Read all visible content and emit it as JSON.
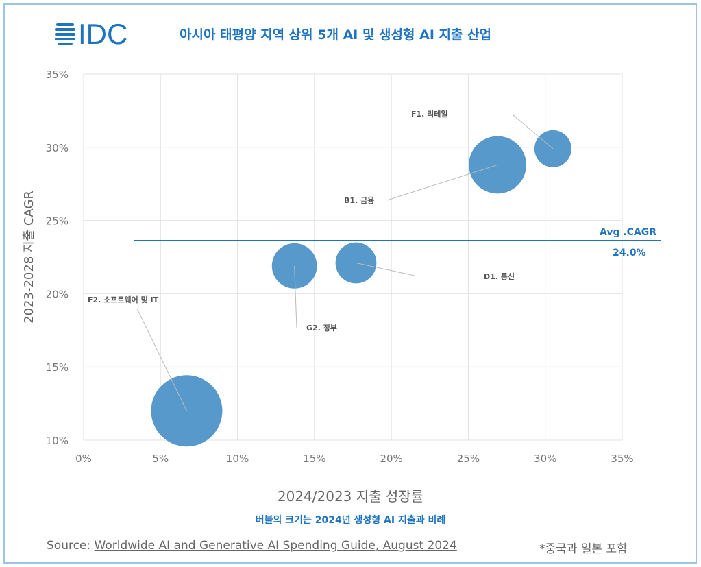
{
  "header": {
    "logo_text": "IDC",
    "title": "아시아 태평양 지역 상위 5개 AI 및 생성형 AI 지출 산업"
  },
  "chart_data": {
    "type": "bubble",
    "title": "아시아 태평양 지역 상위 5개 AI 및 생성형 AI 지출 산업",
    "xlabel": "2024/2023 지출 성장률",
    "ylabel": "2023-2028 지출 CAGR",
    "xlim": [
      0,
      35
    ],
    "ylim": [
      10,
      35
    ],
    "xticks": [
      "0%",
      "5%",
      "10%",
      "15%",
      "20%",
      "25%",
      "30%",
      "35%"
    ],
    "yticks": [
      "10%",
      "15%",
      "20%",
      "25%",
      "30%",
      "35%"
    ],
    "grid": true,
    "bubble_color": "#4f93c9",
    "points": [
      {
        "label": "F1. 리테일",
        "x": 30.5,
        "y": 29.9,
        "relative_size": 0.27
      },
      {
        "label": "B1. 금융",
        "x": 26.9,
        "y": 28.8,
        "relative_size": 0.65
      },
      {
        "label": "D1. 통신",
        "x": 17.7,
        "y": 22.1,
        "relative_size": 0.33
      },
      {
        "label": "G2. 정부",
        "x": 13.7,
        "y": 21.9,
        "relative_size": 0.4
      },
      {
        "label": "F2. 소프트웨어 및 IT",
        "x": 6.7,
        "y": 12.0,
        "relative_size": 1.0
      }
    ],
    "reference_line": {
      "label": "Avg .CAGR",
      "value_label": "24.0%",
      "y": 24.0,
      "color": "#1f74c2"
    },
    "size_note": "버블의 크기는 2024년 생성형 AI 지출과 비례"
  },
  "footer": {
    "source_prefix": "Source: ",
    "source_link": "Worldwide AI and Generative AI Spending Guide, August 2024",
    "note": "*중국과 일본 포함"
  }
}
